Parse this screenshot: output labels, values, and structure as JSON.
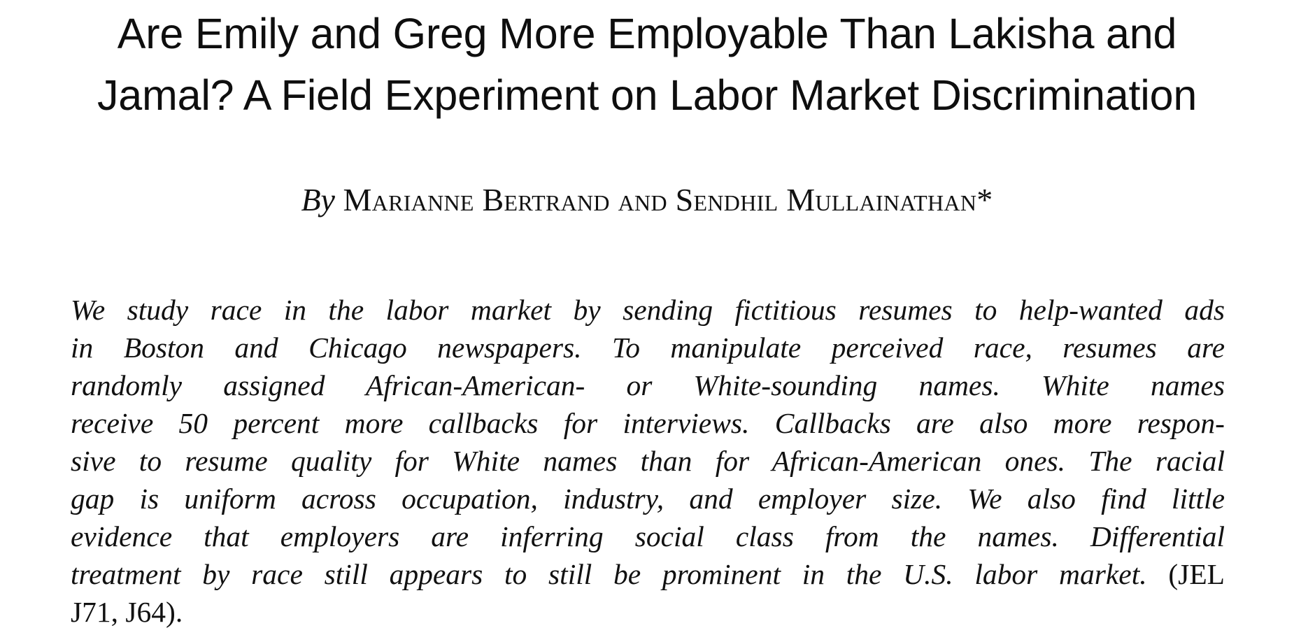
{
  "paper": {
    "title_lines": [
      "Are Emily and Greg More Employable Than Lakisha and",
      "Jamal? A Field Experiment on Labor Market Discrimination"
    ],
    "byline": {
      "by": "By",
      "authors": "Marianne Bertrand and Sendhil Mullainathan*"
    },
    "abstract_lines": [
      "We study race in the labor market by sending fictitious resumes to help-wanted ads",
      "in Boston and Chicago newspapers. To manipulate perceived race, resumes are",
      "randomly assigned African-American- or White-sounding names. White names",
      "receive 50 percent more callbacks for interviews. Callbacks are also more respon-",
      "sive to resume quality for White names than for African-American ones. The racial",
      "gap is uniform across occupation, industry, and employer size. We also find little",
      "evidence that employers are inferring social class from the names. Differential",
      "treatment by race still appears to still be prominent in the U.S. labor market.",
      "J71, J64)."
    ],
    "abstract_jel_open": "(JEL"
  }
}
